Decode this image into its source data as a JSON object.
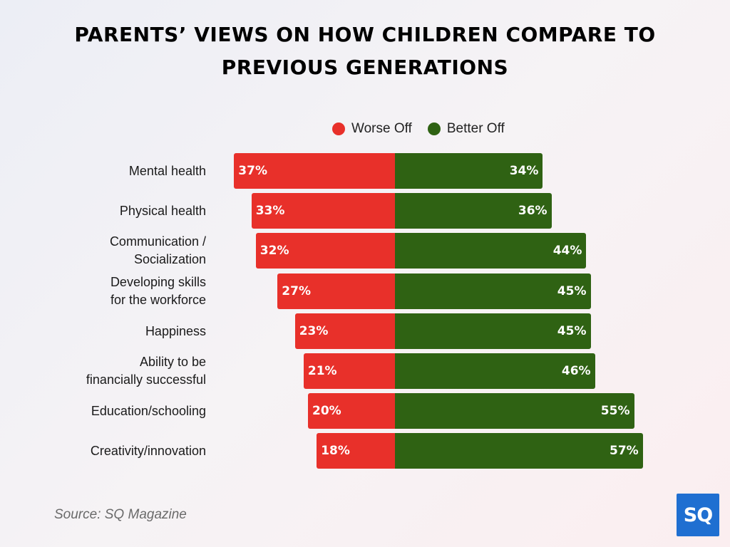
{
  "title_lines": [
    "PARENTS’ VIEWS ON HOW CHILDREN COMPARE TO",
    "PREVIOUS GENERATIONS"
  ],
  "source": "Source: SQ Magazine",
  "logo_text": "SQ",
  "colors": {
    "worse": "#e8302a",
    "better": "#2f6213"
  },
  "chart_data": {
    "type": "bar",
    "orientation": "horizontal-diverging",
    "categories": [
      [
        "Mental health"
      ],
      [
        "Physical health"
      ],
      [
        "Communication /",
        "Socialization"
      ],
      [
        "Developing skills",
        "for the workforce"
      ],
      [
        "Happiness"
      ],
      [
        "Ability to be",
        "financially successful"
      ],
      [
        "Education/schooling"
      ],
      [
        "Creativity/innovation"
      ]
    ],
    "series": [
      {
        "name": "Worse Off",
        "values": [
          37,
          33,
          32,
          27,
          23,
          21,
          20,
          18
        ]
      },
      {
        "name": "Better Off",
        "values": [
          34,
          36,
          44,
          45,
          45,
          46,
          55,
          57
        ]
      }
    ],
    "value_suffix": "%",
    "legend": "top"
  }
}
